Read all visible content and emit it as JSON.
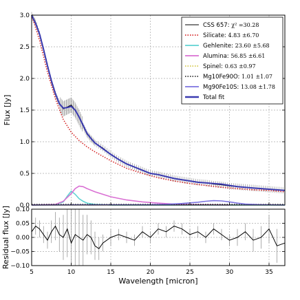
{
  "chart_data": [
    {
      "type": "line",
      "panel": "top",
      "xlabel": "",
      "ylabel": "Flux [Jy]",
      "xlim": [
        5,
        37
      ],
      "ylim": [
        0,
        3.0
      ],
      "x_ticks": [
        5,
        10,
        15,
        20,
        25,
        30,
        35
      ],
      "y_ticks": [
        0.0,
        0.5,
        1.0,
        1.5,
        2.0,
        2.5,
        3.0
      ],
      "y_tick_labels": [
        "0.0",
        "0.5",
        "1.0",
        "1.5",
        "2.0",
        "2.5",
        "3.0"
      ],
      "grid": true,
      "legend_position": "top-right",
      "series": [
        {
          "name": "CSS 657: ",
          "value": "χ² =30.28",
          "color": "#000000",
          "style": "solid",
          "x": [
            5.0,
            5.5,
            6.0,
            6.5,
            7.0,
            7.5,
            8.0,
            8.5,
            9.0,
            9.5,
            10.0,
            10.5,
            11.0,
            11.5,
            12.0,
            12.5,
            13.0,
            14.0,
            15.0,
            16.0,
            17.0,
            18.0,
            19.0,
            20.0,
            21.0,
            22.0,
            23.0,
            24.0,
            25.0,
            26.0,
            27.0,
            28.0,
            29.0,
            30.0,
            31.0,
            32.0,
            33.0,
            34.0,
            35.0,
            36.0,
            37.0
          ],
          "y": [
            3.0,
            2.88,
            2.7,
            2.45,
            2.2,
            1.95,
            1.75,
            1.6,
            1.52,
            1.55,
            1.58,
            1.5,
            1.38,
            1.25,
            1.12,
            1.05,
            0.98,
            0.9,
            0.8,
            0.72,
            0.65,
            0.6,
            0.55,
            0.5,
            0.48,
            0.45,
            0.42,
            0.4,
            0.38,
            0.36,
            0.35,
            0.33,
            0.32,
            0.3,
            0.29,
            0.28,
            0.27,
            0.26,
            0.25,
            0.24,
            0.23
          ]
        },
        {
          "name": "Silicate: ",
          "value": "4.83 ±6.70",
          "color": "#d62728",
          "style": "dotted",
          "x": [
            5.0,
            6.0,
            7.0,
            8.0,
            9.0,
            10.0,
            11.0,
            12.0,
            13.0,
            14.0,
            15.0,
            17.0,
            19.0,
            21.0,
            23.0,
            25.0,
            27.0,
            29.0,
            31.0,
            33.0,
            35.0,
            37.0
          ],
          "y": [
            3.0,
            2.6,
            2.1,
            1.68,
            1.35,
            1.15,
            1.02,
            0.92,
            0.84,
            0.77,
            0.7,
            0.58,
            0.5,
            0.43,
            0.38,
            0.34,
            0.31,
            0.28,
            0.26,
            0.24,
            0.23,
            0.21
          ]
        },
        {
          "name": "Gehlenite: ",
          "value": "23.60 ±5.68",
          "color": "#5fd3d3",
          "style": "solid",
          "x": [
            5.0,
            8.0,
            9.0,
            9.5,
            10.0,
            10.5,
            11.0,
            11.5,
            12.0,
            13.0,
            14.0,
            15.0,
            37.0
          ],
          "y": [
            0.0,
            0.005,
            0.05,
            0.14,
            0.22,
            0.17,
            0.1,
            0.06,
            0.03,
            0.01,
            0.005,
            0.0,
            0.0
          ]
        },
        {
          "name": "Alumina: ",
          "value": "56.85 ±6.61",
          "color": "#d96fd3",
          "style": "solid",
          "x": [
            5.0,
            8.0,
            9.0,
            10.0,
            10.5,
            11.0,
            11.5,
            12.0,
            13.0,
            14.0,
            15.0,
            17.0,
            19.0,
            21.0,
            23.0,
            25.0,
            27.0,
            30.0
          ],
          "y": [
            0.0,
            0.01,
            0.06,
            0.18,
            0.26,
            0.3,
            0.29,
            0.26,
            0.21,
            0.17,
            0.13,
            0.08,
            0.05,
            0.03,
            0.015,
            0.008,
            0.004,
            0.0
          ]
        },
        {
          "name": "Spinel: ",
          "value": "0.63 ±0.97",
          "color": "#d4c84a",
          "style": "dotted",
          "x": [
            5.0,
            37.0
          ],
          "y": [
            0.003,
            0.003
          ]
        },
        {
          "name": "Mg10Fe90O: ",
          "value": "1.01 ±1.07",
          "color": "#333333",
          "style": "dotted",
          "x": [
            5.0,
            37.0
          ],
          "y": [
            0.01,
            0.01
          ]
        },
        {
          "name": "Mg90Fe10S: ",
          "value": "13.08 ±1.78",
          "color": "#7b72e0",
          "style": "solid",
          "x": [
            5.0,
            20.0,
            22.0,
            24.0,
            26.0,
            27.0,
            28.0,
            29.0,
            30.0,
            31.0,
            32.0,
            34.0,
            37.0
          ],
          "y": [
            0.0,
            0.005,
            0.012,
            0.025,
            0.045,
            0.06,
            0.07,
            0.065,
            0.05,
            0.03,
            0.015,
            0.005,
            0.0
          ]
        },
        {
          "name": "Total fit",
          "value": "",
          "color": "#3a3ab0",
          "style": "solid",
          "x": [
            5.0,
            5.5,
            6.0,
            6.5,
            7.0,
            7.5,
            8.0,
            8.5,
            9.0,
            9.5,
            10.0,
            10.5,
            11.0,
            11.5,
            12.0,
            12.5,
            13.0,
            14.0,
            15.0,
            16.0,
            17.0,
            18.0,
            19.0,
            20.0,
            21.0,
            22.0,
            23.0,
            24.0,
            25.0,
            26.0,
            27.0,
            28.0,
            29.0,
            30.0,
            31.0,
            32.0,
            33.0,
            34.0,
            35.0,
            36.0,
            37.0
          ],
          "y": [
            3.0,
            2.87,
            2.7,
            2.46,
            2.2,
            1.96,
            1.76,
            1.6,
            1.53,
            1.54,
            1.56,
            1.5,
            1.39,
            1.26,
            1.13,
            1.05,
            0.98,
            0.89,
            0.8,
            0.72,
            0.65,
            0.6,
            0.55,
            0.5,
            0.48,
            0.45,
            0.42,
            0.4,
            0.38,
            0.36,
            0.35,
            0.34,
            0.33,
            0.31,
            0.29,
            0.28,
            0.27,
            0.26,
            0.25,
            0.24,
            0.23
          ]
        }
      ]
    },
    {
      "type": "line",
      "panel": "bottom",
      "xlabel": "Wavelength [micron]",
      "ylabel": "Residual flux [Jy]",
      "xlim": [
        5,
        37
      ],
      "ylim": [
        -0.1,
        0.1
      ],
      "x_ticks": [
        5,
        10,
        15,
        20,
        25,
        30,
        35
      ],
      "x_tick_labels": [
        "5",
        "10",
        "15",
        "20",
        "25",
        "30",
        "35"
      ],
      "y_ticks": [
        -0.1,
        -0.05,
        0.0,
        0.05,
        0.1
      ],
      "y_tick_labels": [
        "−0.10",
        "−0.05",
        "0.00",
        "0.05",
        "0.10"
      ],
      "grid": true,
      "series": [
        {
          "name": "",
          "color": "#000000",
          "x": [
            5.0,
            5.5,
            6.0,
            6.5,
            7.0,
            7.5,
            8.0,
            8.5,
            9.0,
            9.5,
            10.0,
            10.5,
            11.0,
            11.5,
            12.0,
            12.5,
            13.0,
            13.5,
            14.0,
            15.0,
            16.0,
            17.0,
            18.0,
            19.0,
            20.0,
            21.0,
            22.0,
            23.0,
            24.0,
            25.0,
            26.0,
            27.0,
            28.0,
            29.0,
            30.0,
            31.0,
            32.0,
            33.0,
            34.0,
            35.0,
            36.0,
            37.0
          ],
          "y": [
            0.02,
            0.04,
            0.03,
            0.01,
            -0.01,
            0.02,
            0.04,
            0.01,
            0.0,
            0.03,
            -0.02,
            0.01,
            0.0,
            -0.01,
            0.01,
            0.0,
            -0.03,
            -0.04,
            -0.02,
            0.0,
            0.01,
            0.0,
            -0.01,
            0.02,
            0.0,
            0.03,
            0.02,
            0.04,
            0.03,
            0.01,
            0.02,
            0.0,
            0.03,
            0.01,
            -0.01,
            0.0,
            0.02,
            -0.01,
            0.0,
            0.03,
            -0.03,
            -0.02
          ],
          "err": [
            0.03,
            0.03,
            0.03,
            0.03,
            0.03,
            0.04,
            0.05,
            0.06,
            0.08,
            0.1,
            0.12,
            0.12,
            0.1,
            0.09,
            0.07,
            0.06,
            0.05,
            0.04,
            0.03,
            0.03,
            0.02,
            0.02,
            0.02,
            0.02,
            0.02,
            0.02,
            0.02,
            0.02,
            0.02,
            0.02,
            0.02,
            0.02,
            0.02,
            0.02,
            0.02,
            0.03,
            0.03,
            0.04,
            0.04,
            0.05,
            0.06,
            0.07
          ]
        }
      ]
    }
  ]
}
